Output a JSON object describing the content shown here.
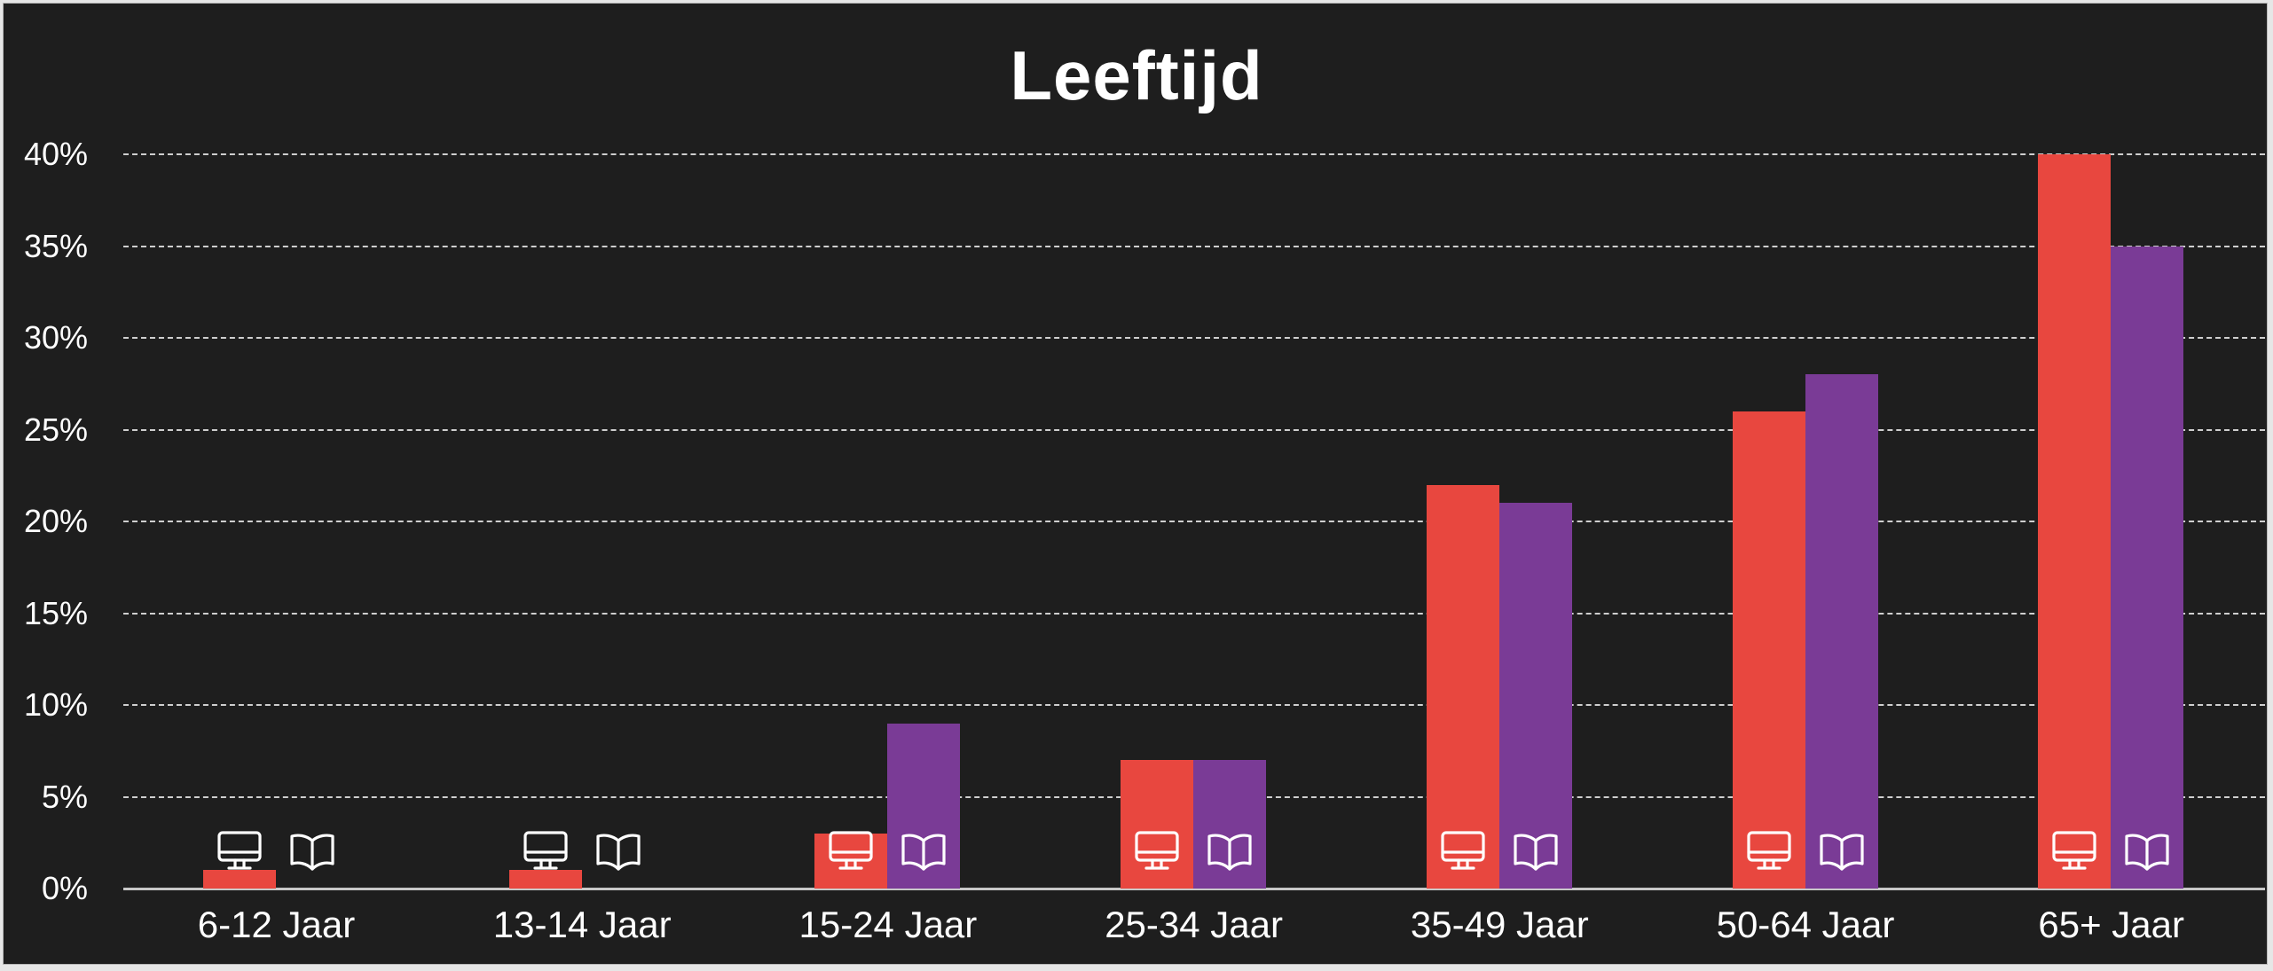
{
  "chart_data": {
    "type": "bar",
    "title": "Leeftijd",
    "xlabel": "",
    "ylabel": "",
    "ylim": [
      0,
      40
    ],
    "yticks": [
      "0%",
      "5%",
      "10%",
      "15%",
      "20%",
      "25%",
      "30%",
      "35%",
      "40%"
    ],
    "grid": true,
    "legend_position": "icons on bars",
    "categories": [
      "6-12 Jaar",
      "13-14 Jaar",
      "15-24 Jaar",
      "25-34 Jaar",
      "35-49 Jaar",
      "50-64 Jaar",
      "65+ Jaar"
    ],
    "series": [
      {
        "name": "computer-icon series",
        "icon": "monitor-icon",
        "color": "#E8473F",
        "values": [
          1,
          1,
          3,
          7,
          22,
          26,
          40
        ]
      },
      {
        "name": "book-icon series",
        "icon": "book-icon",
        "color": "#7A3B96",
        "values": [
          0,
          0,
          9,
          7,
          21,
          28,
          35
        ]
      }
    ]
  },
  "colors": {
    "background": "#1e1e1e",
    "series_a": "#E8473F",
    "series_b": "#7A3B96",
    "grid": "#cfcfcf",
    "text": "#ffffff"
  }
}
